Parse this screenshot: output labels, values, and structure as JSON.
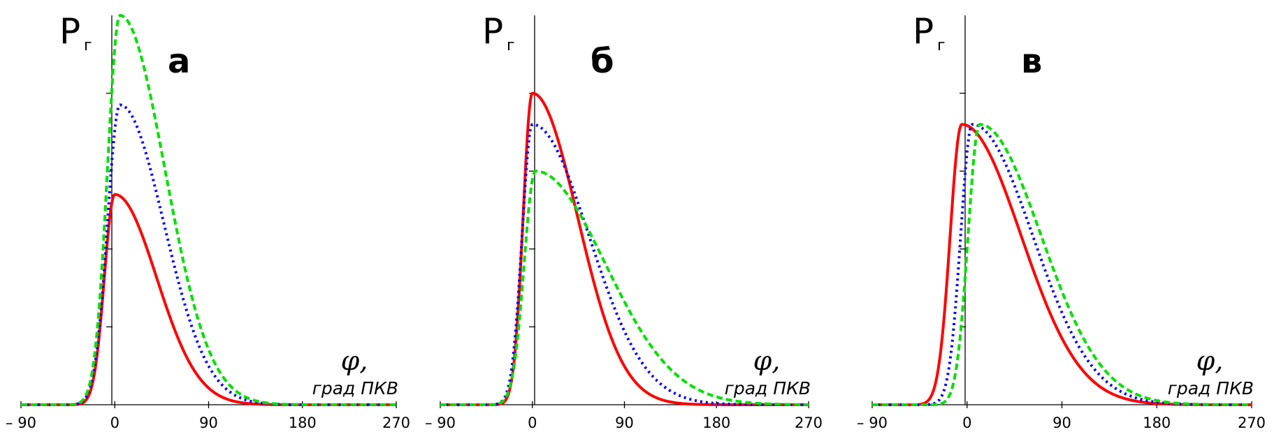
{
  "chart_data": [
    {
      "type": "line",
      "panel_label": "а",
      "ylabel_main": "P",
      "ylabel_sub": "г",
      "xlabel_symbol": "φ,",
      "xlabel_unit": "град ПКВ",
      "xlim": [
        -90,
        270
      ],
      "ylim": [
        0,
        1.0
      ],
      "xticks": [
        -90,
        0,
        90,
        180,
        270
      ],
      "xtick_labels": [
        "– 90",
        "0",
        "90",
        "180",
        "270"
      ],
      "grid": false,
      "series": [
        {
          "color": "#ff0000",
          "style": "solid",
          "peak_x": 0,
          "peak_y": 0.54,
          "rise_width": 10,
          "fall_width": 40
        },
        {
          "color": "#0000ff",
          "style": "dotted",
          "peak_x": 5,
          "peak_y": 0.77,
          "rise_width": 12,
          "fall_width": 42
        },
        {
          "color": "#00e000",
          "style": "dashed",
          "peak_x": 5,
          "peak_y": 1.0,
          "rise_width": 12,
          "fall_width": 43
        }
      ]
    },
    {
      "type": "line",
      "panel_label": "б",
      "ylabel_main": "P",
      "ylabel_sub": "г",
      "xlabel_symbol": "φ,",
      "xlabel_unit": "град ПКВ",
      "xlim": [
        -90,
        270
      ],
      "ylim": [
        0,
        1.0
      ],
      "xticks": [
        -90,
        0,
        90,
        180,
        270
      ],
      "xtick_labels": [
        "– 90",
        "0",
        "90",
        "180",
        "270"
      ],
      "grid": false,
      "series": [
        {
          "color": "#ff0000",
          "style": "solid",
          "peak_x": 0,
          "peak_y": 0.8,
          "rise_width": 9,
          "fall_width": 44
        },
        {
          "color": "#0000ff",
          "style": "dotted",
          "peak_x": 0,
          "peak_y": 0.72,
          "rise_width": 10,
          "fall_width": 55
        },
        {
          "color": "#00e000",
          "style": "dashed",
          "peak_x": 3,
          "peak_y": 0.6,
          "rise_width": 11,
          "fall_width": 68
        }
      ]
    },
    {
      "type": "line",
      "panel_label": "в",
      "ylabel_main": "P",
      "ylabel_sub": "г",
      "xlabel_symbol": "φ,",
      "xlabel_unit": "град ПКВ",
      "xlim": [
        -90,
        270
      ],
      "ylim": [
        0,
        1.0
      ],
      "xticks": [
        -90,
        0,
        90,
        180,
        270
      ],
      "xtick_labels": [
        "– 90",
        "0",
        "90",
        "180",
        "270"
      ],
      "grid": false,
      "series": [
        {
          "color": "#ff0000",
          "style": "solid",
          "peak_x": -5,
          "peak_y": 0.72,
          "rise_width": 11,
          "fall_width": 56
        },
        {
          "color": "#0000ff",
          "style": "dotted",
          "peak_x": 5,
          "peak_y": 0.72,
          "rise_width": 11,
          "fall_width": 57
        },
        {
          "color": "#00e000",
          "style": "dashed",
          "peak_x": 12,
          "peak_y": 0.72,
          "rise_width": 11,
          "fall_width": 58
        }
      ]
    }
  ]
}
